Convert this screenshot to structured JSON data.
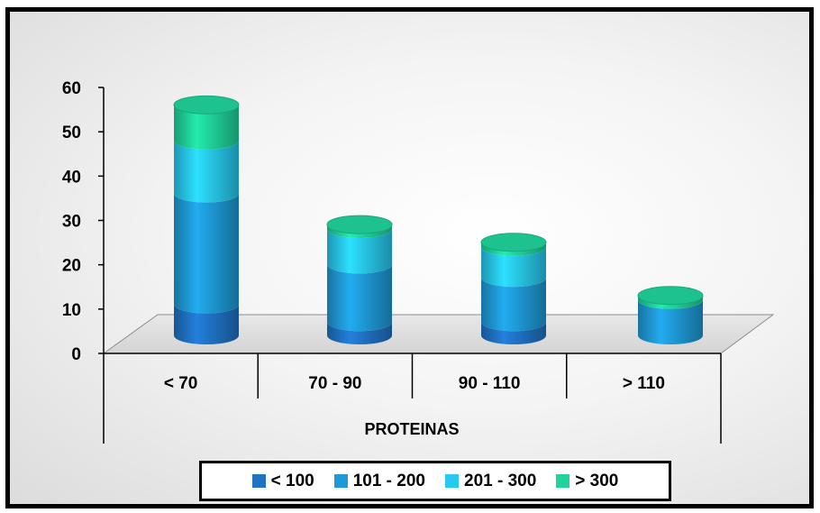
{
  "chart_data": {
    "type": "bar",
    "style": "stacked-3d-cylinder",
    "categories": [
      "< 70",
      "70 - 90",
      "90 - 110",
      "> 110"
    ],
    "xlabel": "PROTEINAS",
    "ylabel": "",
    "title": "",
    "ylim": [
      0,
      60
    ],
    "yticks": [
      0,
      10,
      20,
      30,
      40,
      50,
      60
    ],
    "grid": false,
    "legend_position": "bottom",
    "series": [
      {
        "name": "< 100",
        "color": "#1F72C4",
        "values": [
          7,
          3,
          3,
          0
        ]
      },
      {
        "name": "101 - 200",
        "color": "#1E9AD6",
        "values": [
          25,
          13,
          10,
          8
        ]
      },
      {
        "name": "201 - 300",
        "color": "#27C9F0",
        "values": [
          12,
          8,
          7,
          0
        ]
      },
      {
        "name": "> 300",
        "color": "#1FD39A",
        "values": [
          8,
          1,
          1,
          1
        ]
      }
    ]
  }
}
